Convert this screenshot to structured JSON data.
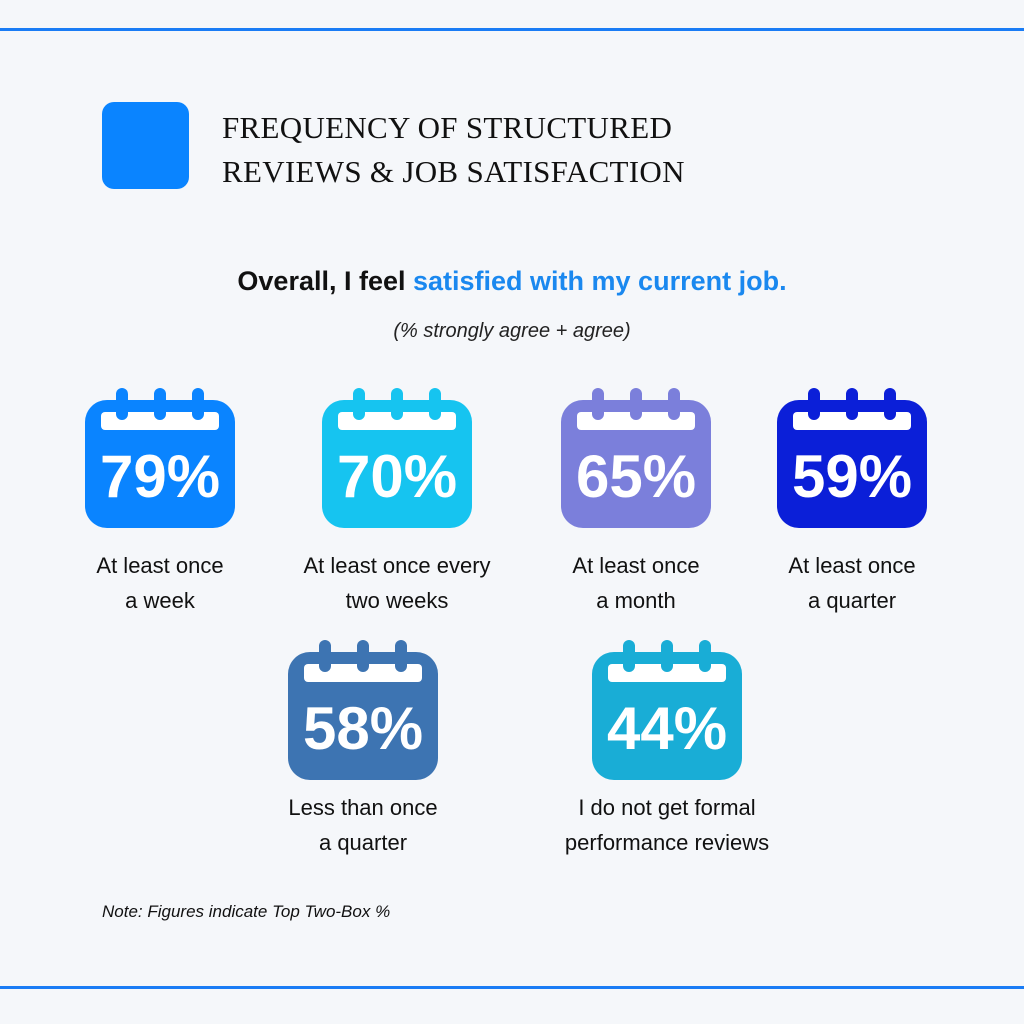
{
  "title": {
    "line1": "FREQUENCY OF STRUCTURED",
    "line2": "REVIEWS & JOB SATISFACTION",
    "accent_color": "#0a84ff"
  },
  "headline": {
    "prefix": "Overall, I feel ",
    "highlight": "satisfied with my current job.",
    "highlight_color": "#1a88ef"
  },
  "subhead": "(% strongly agree + agree)",
  "chart_data": {
    "type": "table",
    "title": "Overall, I feel satisfied with my current job.",
    "subtitle": "(% strongly agree + agree)",
    "categories": [
      "At least once a week",
      "At least once every two weeks",
      "At least once a month",
      "At least once a quarter",
      "Less than once a quarter",
      "I do not get formal performance reviews"
    ],
    "values": [
      79,
      70,
      65,
      59,
      58,
      44
    ],
    "value_labels": [
      "79%",
      "70%",
      "65%",
      "59%",
      "58%",
      "44%"
    ],
    "label_lines": [
      [
        "At least once",
        "a week"
      ],
      [
        "At least once every",
        "two weeks"
      ],
      [
        "At least once",
        "a month"
      ],
      [
        "At least once",
        "a quarter"
      ],
      [
        "Less than once",
        "a quarter"
      ],
      [
        "I do not get formal",
        "performance reviews"
      ]
    ],
    "colors": [
      "#0a84ff",
      "#16c4f0",
      "#7b7fdb",
      "#0b1fd8",
      "#3d74b2",
      "#19add6"
    ],
    "icon": "calendar-icon"
  },
  "note": "Note: Figures indicate Top Two-Box %"
}
